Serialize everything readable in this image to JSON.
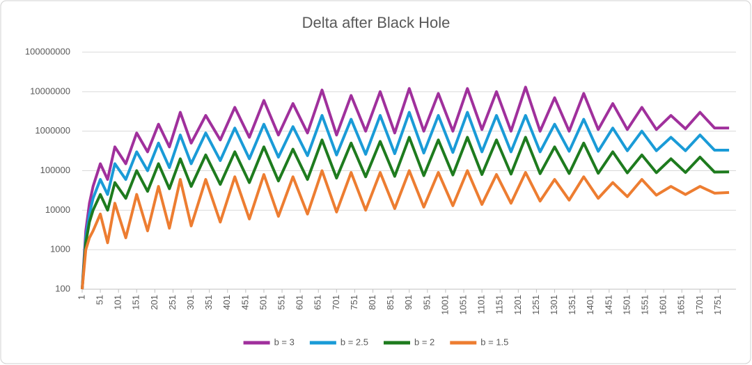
{
  "chart_data": {
    "type": "line",
    "title": "Delta after Black Hole",
    "log_scale": true,
    "grid": true,
    "legend": "bottom",
    "x": [
      1,
      11,
      21,
      31,
      51,
      71,
      91,
      121,
      151,
      181,
      211,
      241,
      271,
      301,
      341,
      381,
      421,
      461,
      501,
      541,
      581,
      621,
      661,
      701,
      741,
      781,
      821,
      861,
      901,
      941,
      981,
      1021,
      1061,
      1101,
      1141,
      1181,
      1221,
      1261,
      1301,
      1341,
      1381,
      1421,
      1461,
      1501,
      1541,
      1581,
      1621,
      1661,
      1701,
      1741,
      1781
    ],
    "xlim": [
      1,
      1800
    ],
    "xticks": [
      1,
      51,
      101,
      151,
      201,
      251,
      301,
      351,
      401,
      451,
      501,
      551,
      601,
      651,
      701,
      751,
      801,
      851,
      901,
      951,
      1001,
      1051,
      1101,
      1151,
      1201,
      1251,
      1301,
      1351,
      1401,
      1451,
      1501,
      1551,
      1601,
      1651,
      1701,
      1751
    ],
    "ylim": [
      100,
      100000000
    ],
    "yticks": [
      100,
      1000,
      10000,
      100000,
      1000000,
      10000000,
      100000000
    ],
    "series": [
      {
        "name": "b = 3",
        "color": "#a0309c",
        "values": [
          100,
          3000,
          15000,
          40000,
          150000,
          60000,
          400000,
          150000,
          900000,
          300000,
          1500000,
          400000,
          3000000,
          500000,
          2500000,
          600000,
          4000000,
          700000,
          6000000,
          800000,
          5000000,
          900000,
          11000000,
          800000,
          8000000,
          1000000,
          10000000,
          900000,
          12000000,
          1000000,
          9000000,
          1000000,
          12000000,
          1100000,
          10000000,
          1000000,
          13000000,
          1000000,
          7000000,
          1000000,
          9000000,
          1100000,
          5000000,
          1100000,
          4000000,
          1100000,
          2500000,
          1150000,
          3000000,
          1200000,
          1200000
        ]
      },
      {
        "name": "b = 2.5",
        "color": "#1a9bd7",
        "values": [
          100,
          2000,
          8000,
          20000,
          60000,
          25000,
          150000,
          60000,
          300000,
          100000,
          500000,
          120000,
          800000,
          150000,
          900000,
          180000,
          1200000,
          200000,
          1500000,
          220000,
          1300000,
          240000,
          2500000,
          250000,
          2000000,
          260000,
          2500000,
          270000,
          3000000,
          280000,
          2500000,
          290000,
          3000000,
          300000,
          2500000,
          300000,
          2500000,
          300000,
          1500000,
          310000,
          2000000,
          310000,
          1200000,
          320000,
          1000000,
          320000,
          700000,
          320000,
          800000,
          330000,
          330000
        ]
      },
      {
        "name": "b = 2",
        "color": "#1e7b1e",
        "values": [
          100,
          1500,
          5000,
          10000,
          25000,
          10000,
          50000,
          20000,
          100000,
          30000,
          150000,
          35000,
          200000,
          40000,
          250000,
          45000,
          300000,
          50000,
          400000,
          55000,
          350000,
          60000,
          600000,
          65000,
          500000,
          70000,
          550000,
          72000,
          700000,
          75000,
          600000,
          78000,
          700000,
          80000,
          600000,
          82000,
          700000,
          84000,
          400000,
          85000,
          500000,
          86000,
          300000,
          88000,
          250000,
          89000,
          200000,
          90000,
          220000,
          92000,
          93000
        ]
      },
      {
        "name": "b = 1.5",
        "color": "#ed7d31",
        "values": [
          100,
          1000,
          2000,
          3000,
          8000,
          1500,
          15000,
          2000,
          25000,
          3000,
          40000,
          3500,
          60000,
          4000,
          60000,
          5000,
          70000,
          6000,
          80000,
          7000,
          70000,
          8000,
          100000,
          9000,
          90000,
          10000,
          90000,
          11000,
          100000,
          12000,
          90000,
          13000,
          100000,
          14000,
          80000,
          15000,
          90000,
          17000,
          60000,
          18000,
          70000,
          20000,
          50000,
          22000,
          60000,
          24000,
          40000,
          25000,
          40000,
          27000,
          28000
        ]
      }
    ]
  }
}
